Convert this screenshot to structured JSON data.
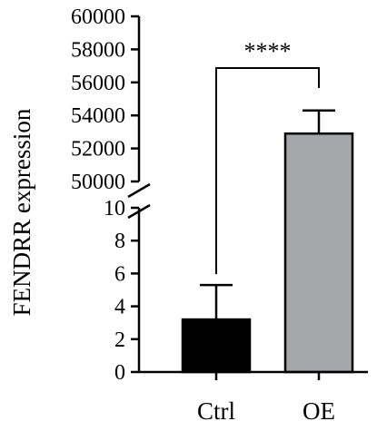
{
  "chart_data": {
    "type": "bar",
    "ylabel": "FENDRR expression",
    "categories": [
      "Ctrl",
      "OE"
    ],
    "values": [
      3.2,
      52900
    ],
    "error_upper": [
      5.3,
      54300
    ],
    "colors": [
      "#000000",
      "#a6a7aa"
    ],
    "y_axis_break": true,
    "y_segments": [
      {
        "range": [
          0,
          10
        ],
        "ticks": [
          0,
          2,
          4,
          6,
          8,
          10
        ]
      },
      {
        "range": [
          50000,
          60000
        ],
        "ticks": [
          50000,
          52000,
          54000,
          56000,
          58000,
          60000
        ]
      }
    ],
    "annotations": [
      {
        "text": "****",
        "between": [
          "Ctrl",
          "OE"
        ]
      }
    ],
    "grid": false
  }
}
